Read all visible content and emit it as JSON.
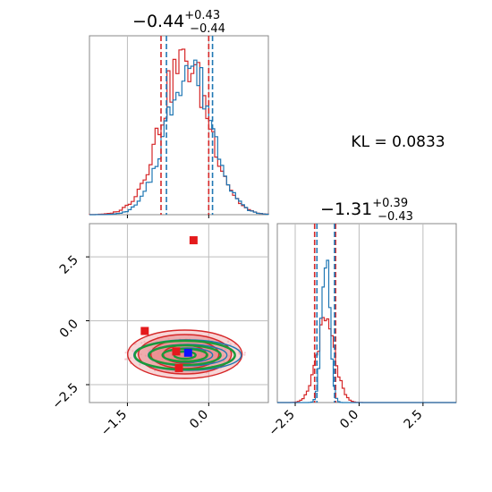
{
  "chart_data": {
    "type": "corner",
    "parameters": [
      {
        "title": {
          "median": "−0.44",
          "plus": "+0.43",
          "minus": "−0.44"
        },
        "range": [
          -2.2,
          1.1
        ],
        "ticks": [
          {
            "v": -1.5,
            "label": "−1.5"
          },
          {
            "v": 0.0,
            "label": "0.0"
          }
        ],
        "quantiles_red": [
          -0.88,
          0.0
        ],
        "quantiles_blue": [
          -0.78,
          0.07
        ]
      },
      {
        "title": {
          "median": "−1.31",
          "plus": "+0.39",
          "minus": "−0.43"
        },
        "range": [
          -3.2,
          3.8
        ],
        "ticks": [
          {
            "v": -2.5,
            "label": "−2.5"
          },
          {
            "v": 0.0,
            "label": "0.0"
          },
          {
            "v": 2.5,
            "label": "2.5"
          }
        ],
        "quantiles_red": [
          -1.74,
          -0.92
        ],
        "quantiles_blue": [
          -1.65,
          -0.96
        ]
      }
    ],
    "kl_text": "KL = 0.0833",
    "marginal_x_red": {
      "mu": -0.44,
      "sigma": 0.45
    },
    "marginal_x_blue": {
      "mu": -0.36,
      "sigma": 0.42
    },
    "marginal_y_red": {
      "mu": -1.31,
      "sigma": 0.36
    },
    "marginal_y_blue": {
      "mu": -1.31,
      "sigma": 0.16
    },
    "markers": [
      {
        "x": -0.28,
        "y": 3.15,
        "color": "#e41a1c"
      },
      {
        "x": -1.18,
        "y": -0.4,
        "color": "#e41a1c"
      },
      {
        "x": -0.55,
        "y": -1.85,
        "color": "#e41a1c"
      },
      {
        "x": -0.6,
        "y": -1.2,
        "color": "#e41a1c"
      },
      {
        "x": -0.38,
        "y": -1.25,
        "color": "#1010ff"
      }
    ],
    "contour_center": {
      "x": -0.44,
      "y": -1.31
    },
    "colors": {
      "red": "#d62728",
      "blue": "#1f77b4",
      "green": "#1a9a3a",
      "red_fill": "#e8898b"
    },
    "grid": true
  }
}
